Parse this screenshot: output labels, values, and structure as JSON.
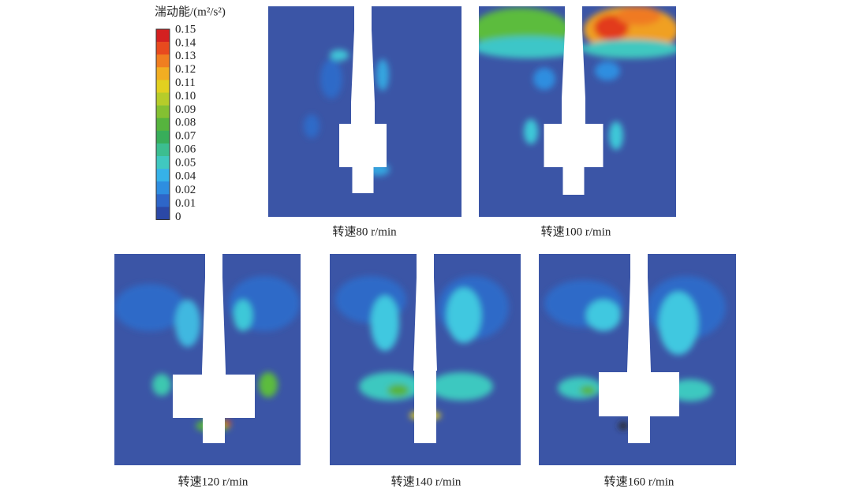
{
  "legend": {
    "title": "湍动能/(m²/s²)",
    "ticks": [
      "0.15",
      "0.14",
      "0.13",
      "0.12",
      "0.11",
      "0.10",
      "0.09",
      "0.08",
      "0.07",
      "0.06",
      "0.05",
      "0.04",
      "0.02",
      "0.01",
      "0"
    ]
  },
  "panels": [
    {
      "caption": "转速80 r/min"
    },
    {
      "caption": "转速100 r/min"
    },
    {
      "caption": "转速120 r/min"
    },
    {
      "caption": "转速140 r/min"
    },
    {
      "caption": "转速160 r/min"
    }
  ]
}
